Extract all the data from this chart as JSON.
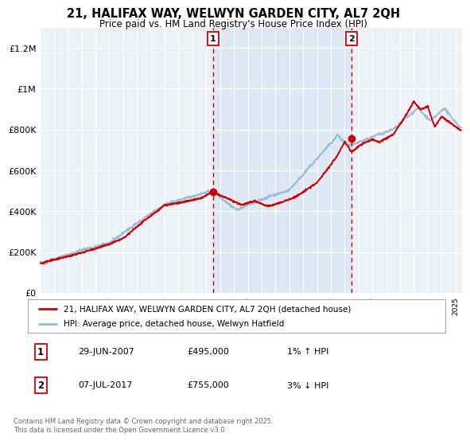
{
  "title": "21, HALIFAX WAY, WELWYN GARDEN CITY, AL7 2QH",
  "subtitle": "Price paid vs. HM Land Registry's House Price Index (HPI)",
  "ylim": [
    0,
    1300000
  ],
  "xlim_start": 1995.0,
  "xlim_end": 2025.5,
  "yticks": [
    0,
    200000,
    400000,
    600000,
    800000,
    1000000,
    1200000
  ],
  "ytick_labels": [
    "£0",
    "£200K",
    "£400K",
    "£600K",
    "£800K",
    "£1M",
    "£1.2M"
  ],
  "xticks": [
    1995,
    1996,
    1997,
    1998,
    1999,
    2000,
    2001,
    2002,
    2003,
    2004,
    2005,
    2006,
    2007,
    2008,
    2009,
    2010,
    2011,
    2012,
    2013,
    2014,
    2015,
    2016,
    2017,
    2018,
    2019,
    2020,
    2021,
    2022,
    2023,
    2024,
    2025
  ],
  "background_color": "#ffffff",
  "plot_bg_color": "#eef2f7",
  "grid_color": "#ffffff",
  "sale1_x": 2007.49,
  "sale1_y": 495000,
  "sale2_x": 2017.52,
  "sale2_y": 755000,
  "vline1_x": 2007.49,
  "vline2_x": 2017.52,
  "vline_color": "#cc0000",
  "vline_shade_color": "#dde8f4",
  "legend_line1": "21, HALIFAX WAY, WELWYN GARDEN CITY, AL7 2QH (detached house)",
  "legend_line2": "HPI: Average price, detached house, Welwyn Hatfield",
  "annotation1_label": "1",
  "annotation1_date": "29-JUN-2007",
  "annotation1_price": "£495,000",
  "annotation1_hpi": "1% ↑ HPI",
  "annotation2_label": "2",
  "annotation2_date": "07-JUL-2017",
  "annotation2_price": "£755,000",
  "annotation2_hpi": "3% ↓ HPI",
  "footer": "Contains HM Land Registry data © Crown copyright and database right 2025.\nThis data is licensed under the Open Government Licence v3.0.",
  "red_line_color": "#cc0000",
  "blue_line_color": "#90b8d8",
  "sale_dot_color": "#cc0000",
  "label_box_color": "#cc0000"
}
